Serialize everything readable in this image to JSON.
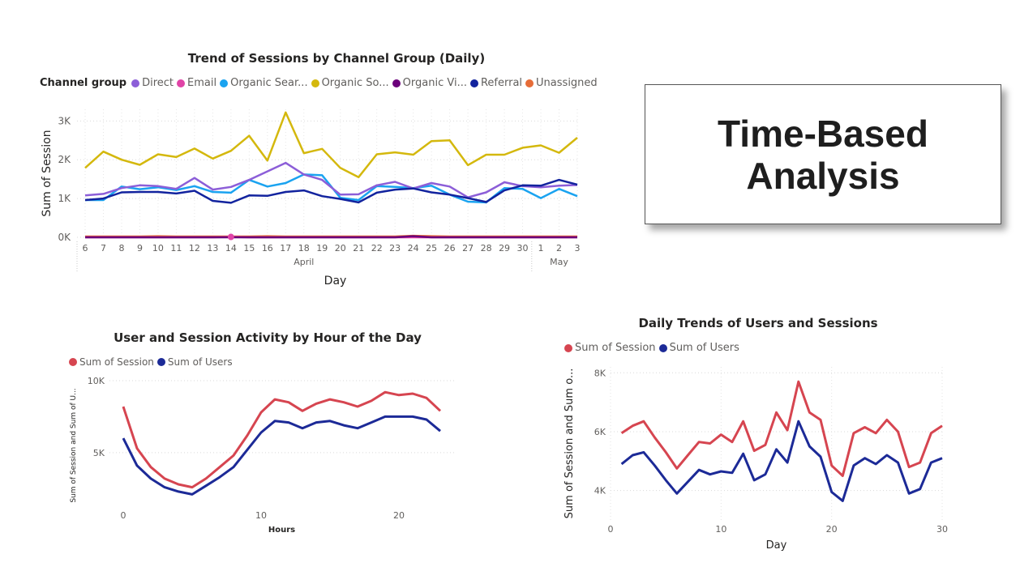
{
  "page_title": "Time-Based\nAnalysis",
  "chart_data": [
    {
      "type": "line",
      "title": "Trend of Sessions by Channel Group (Daily)",
      "legend_title": "Channel group",
      "xlabel": "Day",
      "ylabel": "Sum of Session",
      "ylim": [
        0,
        3300
      ],
      "y_ticks": [
        "0K",
        "1K",
        "2K",
        "3K"
      ],
      "y_tick_values": [
        0,
        1000,
        2000,
        3000
      ],
      "x_tick_labels": [
        "6",
        "7",
        "8",
        "9",
        "10",
        "11",
        "12",
        "13",
        "14",
        "15",
        "16",
        "17",
        "18",
        "19",
        "20",
        "21",
        "22",
        "23",
        "24",
        "25",
        "26",
        "27",
        "28",
        "29",
        "30",
        "1",
        "2",
        "3"
      ],
      "months": [
        "April",
        "May"
      ],
      "series": [
        {
          "name": "Direct",
          "color": "#8c5ed8",
          "values": [
            1080,
            1120,
            1270,
            1340,
            1320,
            1250,
            1530,
            1230,
            1300,
            1480,
            1700,
            1920,
            1620,
            1480,
            1100,
            1110,
            1340,
            1430,
            1260,
            1400,
            1310,
            1030,
            1160,
            1420,
            1320,
            1290,
            1330,
            1350
          ]
        },
        {
          "name": "Email",
          "color": "#e044a7",
          "values": [
            0,
            0,
            0,
            0,
            0,
            0,
            0,
            0,
            10,
            0,
            0,
            0,
            0,
            0,
            0,
            0,
            0,
            0,
            0,
            0,
            0,
            0,
            0,
            0,
            0,
            0,
            0,
            0
          ]
        },
        {
          "name": "Organic Sear...",
          "color": "#1aa3f0",
          "values": [
            960,
            960,
            1310,
            1240,
            1290,
            1220,
            1320,
            1170,
            1150,
            1480,
            1310,
            1400,
            1620,
            1600,
            1020,
            960,
            1320,
            1300,
            1270,
            1330,
            1100,
            920,
            900,
            1270,
            1250,
            1010,
            1250,
            1060
          ]
        },
        {
          "name": "Organic So...",
          "color": "#d4b80d",
          "values": [
            1790,
            2210,
            2000,
            1870,
            2140,
            2070,
            2290,
            2030,
            2230,
            2620,
            1980,
            3220,
            2170,
            2280,
            1790,
            1550,
            2140,
            2190,
            2130,
            2480,
            2500,
            1860,
            2130,
            2130,
            2310,
            2370,
            2180,
            2570
          ]
        },
        {
          "name": "Organic Vi...",
          "color": "#6b007b",
          "values": [
            0,
            0,
            0,
            0,
            0,
            0,
            0,
            0,
            0,
            0,
            0,
            0,
            0,
            0,
            0,
            0,
            0,
            0,
            30,
            0,
            0,
            0,
            0,
            0,
            0,
            0,
            0,
            0
          ]
        },
        {
          "name": "Referral",
          "color": "#12239e",
          "values": [
            960,
            1000,
            1160,
            1170,
            1170,
            1130,
            1200,
            940,
            890,
            1080,
            1070,
            1170,
            1210,
            1060,
            990,
            900,
            1150,
            1230,
            1260,
            1160,
            1100,
            1010,
            910,
            1210,
            1340,
            1330,
            1480,
            1360
          ]
        },
        {
          "name": "Unassigned",
          "color": "#e66c37",
          "values": [
            20,
            20,
            20,
            20,
            30,
            20,
            20,
            20,
            20,
            20,
            30,
            20,
            20,
            20,
            20,
            20,
            20,
            20,
            40,
            30,
            20,
            20,
            20,
            20,
            20,
            20,
            20,
            20
          ]
        }
      ]
    },
    {
      "type": "line",
      "title": "User and Session Activity by Hour of the Day",
      "xlabel": "Hours",
      "ylabel": "Sum of Session and Sum of U...",
      "ylim": [
        1000,
        10000
      ],
      "y_ticks": [
        "5K",
        "10K"
      ],
      "y_tick_values": [
        5000,
        10000
      ],
      "x_ticks": [
        0,
        10,
        20
      ],
      "x": [
        0,
        1,
        2,
        3,
        4,
        5,
        6,
        7,
        8,
        9,
        10,
        11,
        12,
        13,
        14,
        15,
        16,
        17,
        18,
        19,
        20,
        21,
        22,
        23
      ],
      "series": [
        {
          "name": "Sum of Session",
          "color": "#d64550",
          "values": [
            8200,
            5300,
            4000,
            3200,
            2800,
            2600,
            3200,
            4000,
            4800,
            6200,
            7800,
            8700,
            8500,
            7900,
            8400,
            8700,
            8500,
            8200,
            8600,
            9200,
            9000,
            9100,
            8800,
            7900
          ]
        },
        {
          "name": "Sum of Users",
          "color": "#1c2a97",
          "values": [
            6000,
            4100,
            3200,
            2600,
            2300,
            2100,
            2700,
            3300,
            4000,
            5200,
            6400,
            7200,
            7100,
            6700,
            7100,
            7200,
            6900,
            6700,
            7100,
            7500,
            7500,
            7500,
            7300,
            6500
          ]
        }
      ]
    },
    {
      "type": "line",
      "title": "Daily Trends of Users and Sessions",
      "xlabel": "Day",
      "ylabel": "Sum of Session and Sum o...",
      "ylim": [
        3000,
        8200
      ],
      "y_ticks": [
        "4K",
        "6K",
        "8K"
      ],
      "y_tick_values": [
        4000,
        6000,
        8000
      ],
      "x_ticks": [
        0,
        10,
        20,
        30
      ],
      "x": [
        1,
        2,
        3,
        4,
        5,
        6,
        7,
        8,
        9,
        10,
        11,
        12,
        13,
        14,
        15,
        16,
        17,
        18,
        19,
        20,
        21,
        22,
        23,
        24,
        25,
        26,
        27,
        28,
        29,
        30
      ],
      "series": [
        {
          "name": "Sum of Session",
          "color": "#d64550",
          "values": [
            5950,
            6200,
            6350,
            5800,
            5300,
            4750,
            5200,
            5650,
            5600,
            5900,
            5650,
            6350,
            5350,
            5550,
            6650,
            6050,
            7700,
            6650,
            6400,
            4850,
            4500,
            5950,
            6150,
            5950,
            6400,
            6000,
            4800,
            4950,
            5950,
            6200
          ]
        },
        {
          "name": "Sum of Users",
          "color": "#1c2a97",
          "values": [
            4900,
            5200,
            5300,
            4850,
            4350,
            3900,
            4300,
            4700,
            4550,
            4650,
            4600,
            5250,
            4350,
            4550,
            5400,
            4950,
            6350,
            5500,
            5150,
            3950,
            3650,
            4850,
            5100,
            4900,
            5200,
            4950,
            3900,
            4050,
            4950,
            5100
          ]
        }
      ]
    }
  ]
}
